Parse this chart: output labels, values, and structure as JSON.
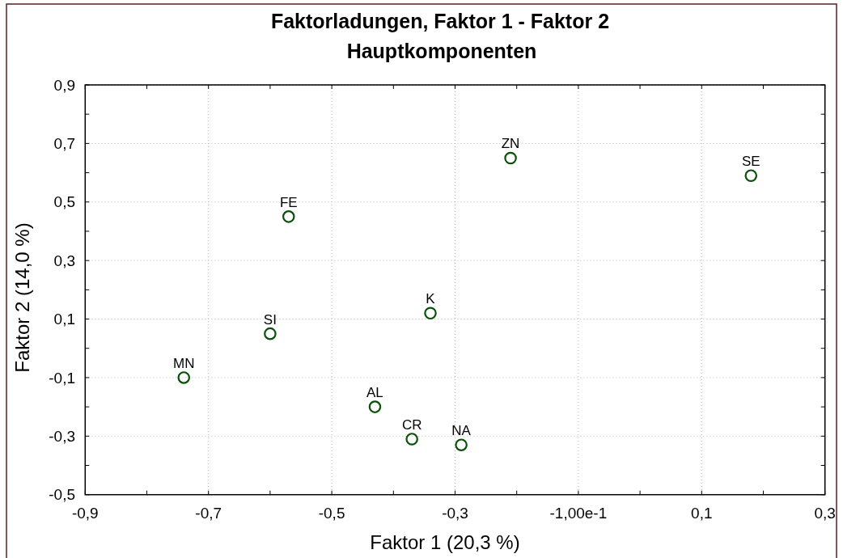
{
  "chart_data": {
    "type": "scatter",
    "title": "Faktorladungen, Faktor 1 - Faktor 2",
    "subtitle": "Hauptkomponenten",
    "xlabel": "Faktor 1 (20,3 %)",
    "ylabel": "Faktor 2 (14,0 %)",
    "x": [
      -0.74,
      -0.6,
      -0.57,
      -0.43,
      -0.37,
      -0.29,
      -0.34,
      -0.21,
      0.18
    ],
    "series": [
      {
        "color": "#0a500a",
        "values": [
          -0.1,
          0.05,
          0.45,
          -0.2,
          -0.31,
          -0.33,
          0.12,
          0.65,
          0.59
        ],
        "value_labels": [
          "MN",
          "SI",
          "FE",
          "AL",
          "CR",
          "NA",
          "K",
          "ZN",
          "SE"
        ]
      }
    ],
    "xlim": [
      -0.9,
      0.3
    ],
    "ylim": [
      -0.5,
      0.9
    ],
    "xticks": [
      {
        "value": -0.9,
        "label": "-0,9"
      },
      {
        "value": -0.8,
        "label": null
      },
      {
        "value": -0.7,
        "label": "-0,7"
      },
      {
        "value": -0.6,
        "label": null
      },
      {
        "value": -0.5,
        "label": "-0,5"
      },
      {
        "value": -0.4,
        "label": null
      },
      {
        "value": -0.3,
        "label": "-0,3"
      },
      {
        "value": -0.2,
        "label": null
      },
      {
        "value": -0.1,
        "label": "-1,00e-1"
      },
      {
        "value": 0,
        "label": null
      },
      {
        "value": 0.1,
        "label": "0,1"
      },
      {
        "value": 0.2,
        "label": null
      },
      {
        "value": 0.3,
        "label": "0,3"
      }
    ],
    "yticks": [
      {
        "value": -0.5,
        "label": "-0,5"
      },
      {
        "value": -0.4,
        "label": null
      },
      {
        "value": -0.3,
        "label": "-0,3"
      },
      {
        "value": -0.2,
        "label": null
      },
      {
        "value": -0.1,
        "label": "-0,1"
      },
      {
        "value": 0,
        "label": null
      },
      {
        "value": 0.1,
        "label": "0,1"
      },
      {
        "value": 0.2,
        "label": null
      },
      {
        "value": 0.3,
        "label": "0,3"
      },
      {
        "value": 0.4,
        "label": null
      },
      {
        "value": 0.5,
        "label": "0,5"
      },
      {
        "value": 0.6,
        "label": null
      },
      {
        "value": 0.7,
        "label": "0,7"
      },
      {
        "value": 0.8,
        "label": null
      },
      {
        "value": 0.9,
        "label": "0,9"
      }
    ],
    "grid": true,
    "marker": "circle"
  }
}
